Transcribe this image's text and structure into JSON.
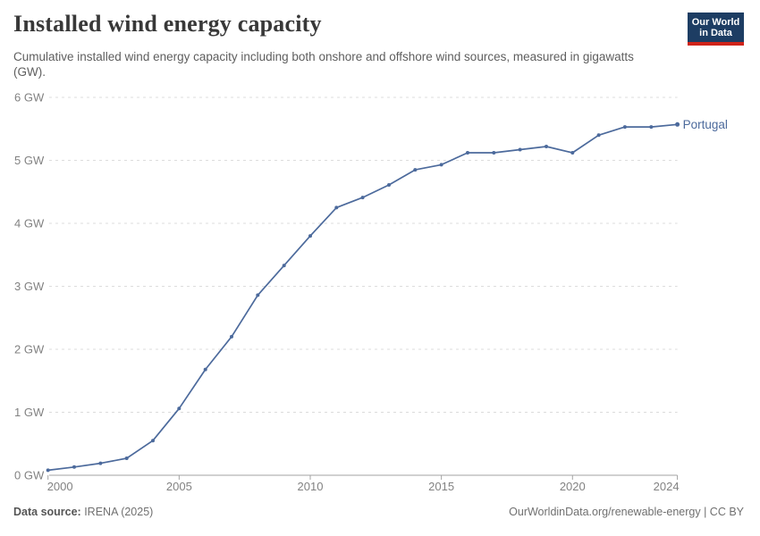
{
  "header": {
    "title": "Installed wind energy capacity",
    "subtitle": "Cumulative installed wind energy capacity including both onshore and offshore wind sources, measured in gigawatts (GW).",
    "logo": {
      "line1": "Our World",
      "line2": "in Data",
      "bg": "#1d3d63",
      "accent": "#cf2319"
    }
  },
  "chart_data": {
    "type": "line",
    "title": "Installed wind energy capacity",
    "x": [
      2000,
      2001,
      2002,
      2003,
      2004,
      2005,
      2006,
      2007,
      2008,
      2009,
      2010,
      2011,
      2012,
      2013,
      2014,
      2015,
      2016,
      2017,
      2018,
      2019,
      2020,
      2021,
      2022,
      2023,
      2024
    ],
    "series": [
      {
        "name": "Portugal",
        "color": "#4c6a9c",
        "values": [
          0.08,
          0.13,
          0.19,
          0.27,
          0.55,
          1.06,
          1.68,
          2.2,
          2.86,
          3.33,
          3.8,
          4.25,
          4.41,
          4.61,
          4.85,
          4.93,
          5.12,
          5.12,
          5.17,
          5.22,
          5.12,
          5.4,
          5.53,
          5.53,
          5.57
        ]
      }
    ],
    "xlabel": "",
    "ylabel": "",
    "xlim": [
      2000,
      2024
    ],
    "ylim": [
      0,
      6
    ],
    "xticks": [
      2000,
      2005,
      2010,
      2015,
      2020,
      2024
    ],
    "yticks": {
      "values": [
        0,
        1,
        2,
        3,
        4,
        5,
        6
      ],
      "labels": [
        "0 GW",
        "1 GW",
        "2 GW",
        "3 GW",
        "4 GW",
        "5 GW",
        "6 GW"
      ]
    },
    "grid": "horizontal-dashed",
    "legend_position": "end-of-line",
    "end_label": "Portugal",
    "markers": true
  },
  "footer": {
    "source_label": "Data source:",
    "source_value": " IRENA (2025)",
    "right_text": "OurWorldinData.org/renewable-energy | CC BY"
  },
  "colors": {
    "line": "#4c6a9c",
    "grid": "#dcdcdc",
    "axis": "#a3a3a3",
    "tick_label": "#828282"
  }
}
